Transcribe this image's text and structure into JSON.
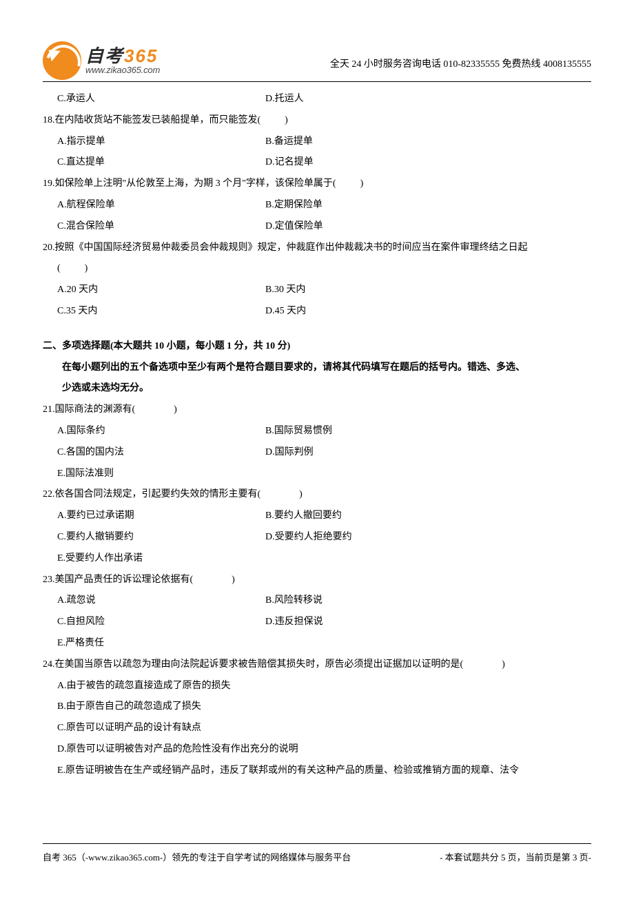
{
  "header": {
    "logo_cn_prefix": "自考",
    "logo_cn_num": "365",
    "logo_url": "www.zikao365.com",
    "contact": "全天 24 小时服务咨询电话  010-82335555    免费热线  4008135555"
  },
  "q17_opts": {
    "C": "C.承运人",
    "D": "D.托运人"
  },
  "q18": {
    "stem": "18.在内陆收货站不能签发已装船提单，而只能签发(",
    "stem_end": ")",
    "A": "A.指示提单",
    "B": "B.备运提单",
    "C": "C.直达提单",
    "D": "D.记名提单"
  },
  "q19": {
    "stem": "19.如保险单上注明\"从伦敦至上海，为期 3 个月\"字样，该保险单属于(",
    "stem_end": ")",
    "A": "A.航程保险单",
    "B": "B.定期保险单",
    "C": "C.混合保险单",
    "D": "D.定值保险单"
  },
  "q20": {
    "stem": "20.按照《中国国际经济贸易仲裁委员会仲裁规则》规定，仲裁庭作出仲裁裁决书的时间应当在案件审理终结之日起",
    "paren_open": "(",
    "paren_close": ")",
    "A": "A.20 天内",
    "B": "B.30 天内",
    "C": "C.35 天内",
    "D": "D.45 天内"
  },
  "section2": {
    "title": "二、多项选择题(本大题共 10 小题，每小题 1 分，共 10 分)",
    "instr1": "在每小题列出的五个备选项中至少有两个是符合题目要求的，请将其代码填写在题后的括号内。错选、多选、",
    "instr2": "少选或未选均无分。"
  },
  "q21": {
    "stem": "21.国际商法的渊源有(",
    "stem_end": ")",
    "A": "A.国际条约",
    "B": "B.国际贸易惯例",
    "C": "C.各国的国内法",
    "D": "D.国际判例",
    "E": "E.国际法准则"
  },
  "q22": {
    "stem": "22.依各国合同法规定，引起要约失效的情形主要有(",
    "stem_end": ")",
    "A": "A.要约已过承诺期",
    "B": "B.要约人撤回要约",
    "C": "C.要约人撤销要约",
    "D": "D.受要约人拒绝要约",
    "E": "E.受要约人作出承诺"
  },
  "q23": {
    "stem": "23.美国产品责任的诉讼理论依据有(",
    "stem_end": ")",
    "A": "A.疏忽说",
    "B": "B.风险转移说",
    "C": "C.自担风险",
    "D": "D.违反担保说",
    "E": "E.严格责任"
  },
  "q24": {
    "stem": "24.在美国当原告以疏忽为理由向法院起诉要求被告赔偿其损失时，原告必须提出证据加以证明的是(",
    "stem_end": ")",
    "A": "A.由于被告的疏忽直接造成了原告的损失",
    "B": "B.由于原告自己的疏忽造成了损失",
    "C": "C.原告可以证明产品的设计有缺点",
    "D": "D.原告可以证明被告对产品的危险性没有作出充分的说明",
    "E": "E.原告证明被告在生产或经销产品时，违反了联邦或州的有关这种产品的质量、检验或推销方面的规章、法令"
  },
  "footer": {
    "left": "自考 365（-www.zikao365.com-）领先的专注于自学考试的网络媒体与服务平台",
    "right": "- 本套试题共分 5 页，当前页是第 3 页-"
  }
}
